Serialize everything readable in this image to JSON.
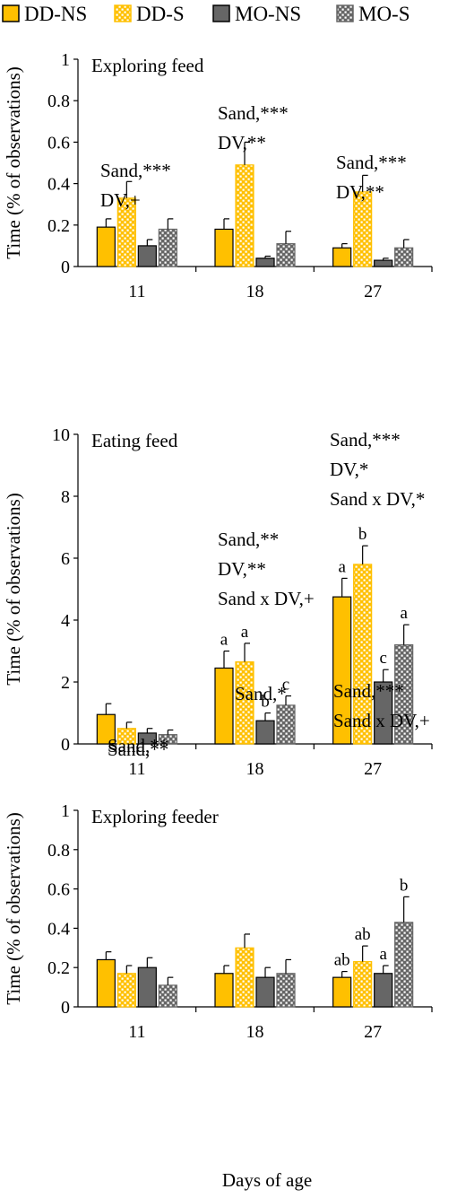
{
  "legend": [
    {
      "name": "DD-NS",
      "fill": "#FFC000",
      "pattern": "solid",
      "edge": "#000000"
    },
    {
      "name": "DD-S",
      "fill": "#FFC000",
      "pattern": "dots",
      "edge": "#FFC000"
    },
    {
      "name": "MO-NS",
      "fill": "#666666",
      "pattern": "solid",
      "edge": "#000000"
    },
    {
      "name": "MO-S",
      "fill": "#666666",
      "pattern": "dots",
      "edge": "#666666"
    }
  ],
  "xlabel": "Days of age",
  "chart_data": [
    {
      "type": "bar",
      "title": "Exploring feed",
      "ylabel": "Time (% of observations)",
      "ylim": [
        0,
        1
      ],
      "yticks": [
        "0",
        "0.2",
        "0.4",
        "0.6",
        "0.8",
        "1"
      ],
      "categories": [
        "11",
        "18",
        "27"
      ],
      "series": [
        {
          "name": "DD-NS",
          "values": [
            0.19,
            0.18,
            0.09
          ],
          "errors": [
            0.04,
            0.05,
            0.02
          ],
          "letters": [
            "",
            "",
            ""
          ]
        },
        {
          "name": "DD-S",
          "values": [
            0.33,
            0.49,
            0.36
          ],
          "errors": [
            0.08,
            0.11,
            0.08
          ],
          "letters": [
            "",
            "",
            ""
          ]
        },
        {
          "name": "MO-NS",
          "values": [
            0.1,
            0.04,
            0.03
          ],
          "errors": [
            0.03,
            0.01,
            0.01
          ],
          "letters": [
            "",
            "",
            ""
          ]
        },
        {
          "name": "MO-S",
          "values": [
            0.18,
            0.11,
            0.09
          ],
          "errors": [
            0.05,
            0.06,
            0.04
          ],
          "letters": [
            "",
            "",
            ""
          ]
        }
      ],
      "annotations": [
        [
          "Sand,***",
          "DV,+"
        ],
        [
          "Sand,***",
          "DV,**"
        ],
        [
          "Sand,***",
          "DV,**"
        ]
      ]
    },
    {
      "type": "bar",
      "title": "Eating feed",
      "ylabel": "Time (% of observations)",
      "ylim": [
        0,
        10
      ],
      "yticks": [
        "0",
        "2",
        "4",
        "6",
        "8",
        "10"
      ],
      "categories": [
        "11",
        "18",
        "27"
      ],
      "series": [
        {
          "name": "DD-NS",
          "values": [
            0.95,
            2.45,
            4.75
          ],
          "errors": [
            0.35,
            0.55,
            0.6
          ],
          "letters": [
            "",
            "a",
            "a"
          ]
        },
        {
          "name": "DD-S",
          "values": [
            0.5,
            2.65,
            5.8
          ],
          "errors": [
            0.2,
            0.6,
            0.6
          ],
          "letters": [
            "",
            "a",
            "b"
          ]
        },
        {
          "name": "MO-NS",
          "values": [
            0.35,
            0.75,
            2.0
          ],
          "errors": [
            0.15,
            0.25,
            0.4
          ],
          "letters": [
            "",
            "b",
            "c"
          ]
        },
        {
          "name": "MO-S",
          "values": [
            0.3,
            1.25,
            3.2
          ],
          "errors": [
            0.15,
            0.3,
            0.65
          ],
          "letters": [
            "",
            "c",
            "a"
          ]
        }
      ],
      "annotations": [
        [
          "Sand,**"
        ],
        [
          "Sand,**",
          "DV,**",
          "Sand x DV,+"
        ],
        [
          "Sand,***",
          "DV,*",
          "Sand x DV,*"
        ]
      ]
    },
    {
      "type": "bar",
      "title": "Exploring feeder",
      "ylabel": "Time (% of observations)",
      "ylim": [
        0,
        1
      ],
      "yticks": [
        "0",
        "0.2",
        "0.4",
        "0.6",
        "0.8",
        "1"
      ],
      "categories": [
        "11",
        "18",
        "27"
      ],
      "series": [
        {
          "name": "DD-NS",
          "values": [
            0.24,
            0.17,
            0.15
          ],
          "errors": [
            0.04,
            0.04,
            0.03
          ],
          "letters": [
            "",
            "",
            "ab"
          ]
        },
        {
          "name": "DD-S",
          "values": [
            0.17,
            0.3,
            0.23
          ],
          "errors": [
            0.04,
            0.07,
            0.08
          ],
          "letters": [
            "",
            "",
            "ab"
          ]
        },
        {
          "name": "MO-NS",
          "values": [
            0.2,
            0.15,
            0.17
          ],
          "errors": [
            0.05,
            0.05,
            0.04
          ],
          "letters": [
            "",
            "",
            "a"
          ]
        },
        {
          "name": "MO-S",
          "values": [
            0.11,
            0.17,
            0.43
          ],
          "errors": [
            0.04,
            0.07,
            0.13
          ],
          "letters": [
            "",
            "",
            "b"
          ]
        }
      ],
      "annotations": [
        [
          "Sand,**"
        ],
        [
          "Sand,*"
        ],
        [
          "Sand,***",
          "Sand x DV,+"
        ]
      ]
    }
  ]
}
